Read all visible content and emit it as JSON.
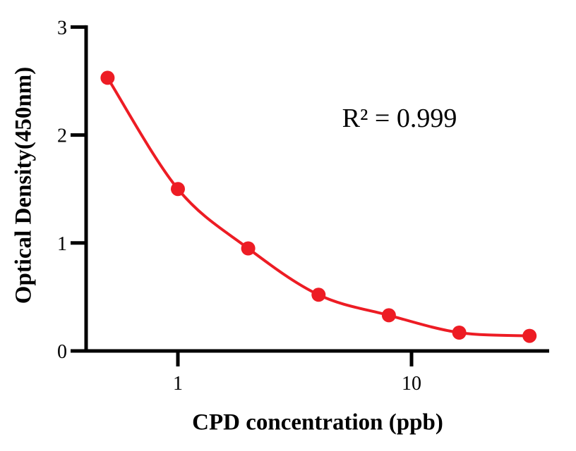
{
  "chart_data": {
    "type": "scatter",
    "x": [
      0.5,
      1,
      2,
      4,
      8,
      16,
      32
    ],
    "y": [
      2.53,
      1.5,
      0.95,
      0.52,
      0.33,
      0.17,
      0.14
    ],
    "title": "",
    "xlabel": "CPD concentration (ppb)",
    "ylabel": "Optical Density(450nm)",
    "annotation": "R² = 0.999",
    "xscale": "log",
    "yscale": "linear",
    "xlim": [
      0.4,
      40
    ],
    "ylim": [
      0,
      3
    ],
    "xticks": [
      1,
      10
    ],
    "xtick_labels": [
      "1",
      "10"
    ],
    "yticks": [
      0,
      1,
      2,
      3
    ],
    "ytick_labels": [
      "0",
      "1",
      "2",
      "3"
    ],
    "grid": false,
    "legend_position": "none",
    "line_color": "#ED1C24",
    "marker_color": "#ED1C24",
    "axis_color": "#000000",
    "curve_style": "smooth-fit-through-points",
    "marker_shape": "circle"
  }
}
